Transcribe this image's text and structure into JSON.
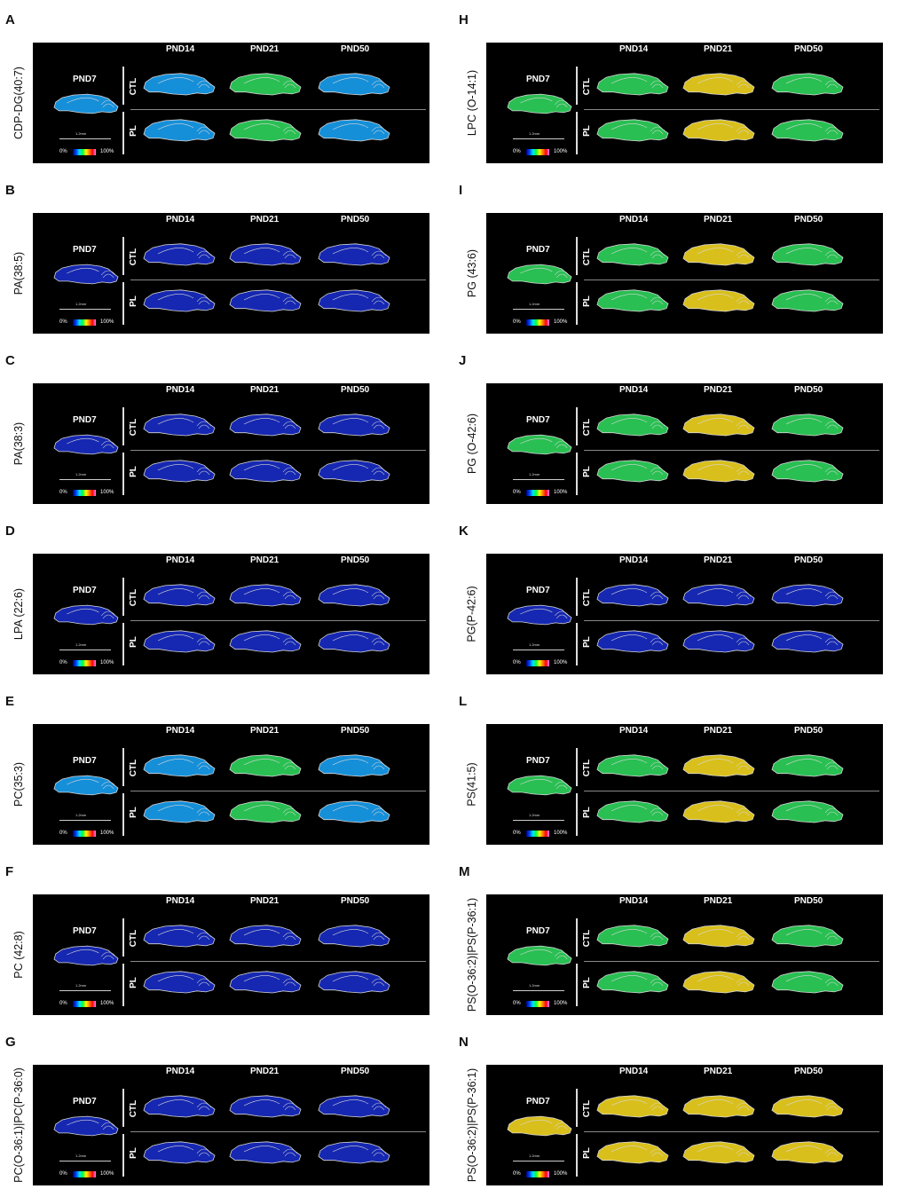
{
  "headers": {
    "c1": "PND14",
    "c2": "PND21",
    "c3": "PND50",
    "single": "PND7"
  },
  "rows": {
    "ctl": "CTL",
    "pl": "PL"
  },
  "scale": {
    "bar": "1.2mm",
    "low": "0%",
    "high": "100%"
  },
  "panels": [
    {
      "letter": "A",
      "label": "CDP-DG(40:7)",
      "side": "left"
    },
    {
      "letter": "B",
      "label": "PA(38:5)",
      "side": "left"
    },
    {
      "letter": "C",
      "label": "PA(38:3)",
      "side": "left"
    },
    {
      "letter": "D",
      "label": "LPA (22:6)",
      "side": "left"
    },
    {
      "letter": "E",
      "label": "PC(35:3)",
      "side": "left"
    },
    {
      "letter": "F",
      "label": "PC (42:8)",
      "side": "left"
    },
    {
      "letter": "G",
      "label": "PC(O-36:1)|PC(P-36:0)",
      "side": "left"
    },
    {
      "letter": "H",
      "label": "LPC (O-14:1)",
      "side": "right"
    },
    {
      "letter": "I",
      "label": "PG (43:6)",
      "side": "right"
    },
    {
      "letter": "J",
      "label": "PG (O-42:6)",
      "side": "right"
    },
    {
      "letter": "K",
      "label": "PG(P-42:6)",
      "side": "right"
    },
    {
      "letter": "L",
      "label": "PS(41:5)",
      "side": "right"
    },
    {
      "letter": "M",
      "label": "PS(O-36:2)|PS(P-36:1)",
      "side": "right"
    },
    {
      "letter": "N",
      "label": "PS(O-36:2)|PS(P-36:1)",
      "side": "right"
    }
  ],
  "colors": {
    "background": "#000000",
    "outline": "#d8d8d8",
    "low": "#1a2fd0",
    "mid": "#1aa8ff",
    "high": "#30e060",
    "hot": "#ffe020"
  }
}
